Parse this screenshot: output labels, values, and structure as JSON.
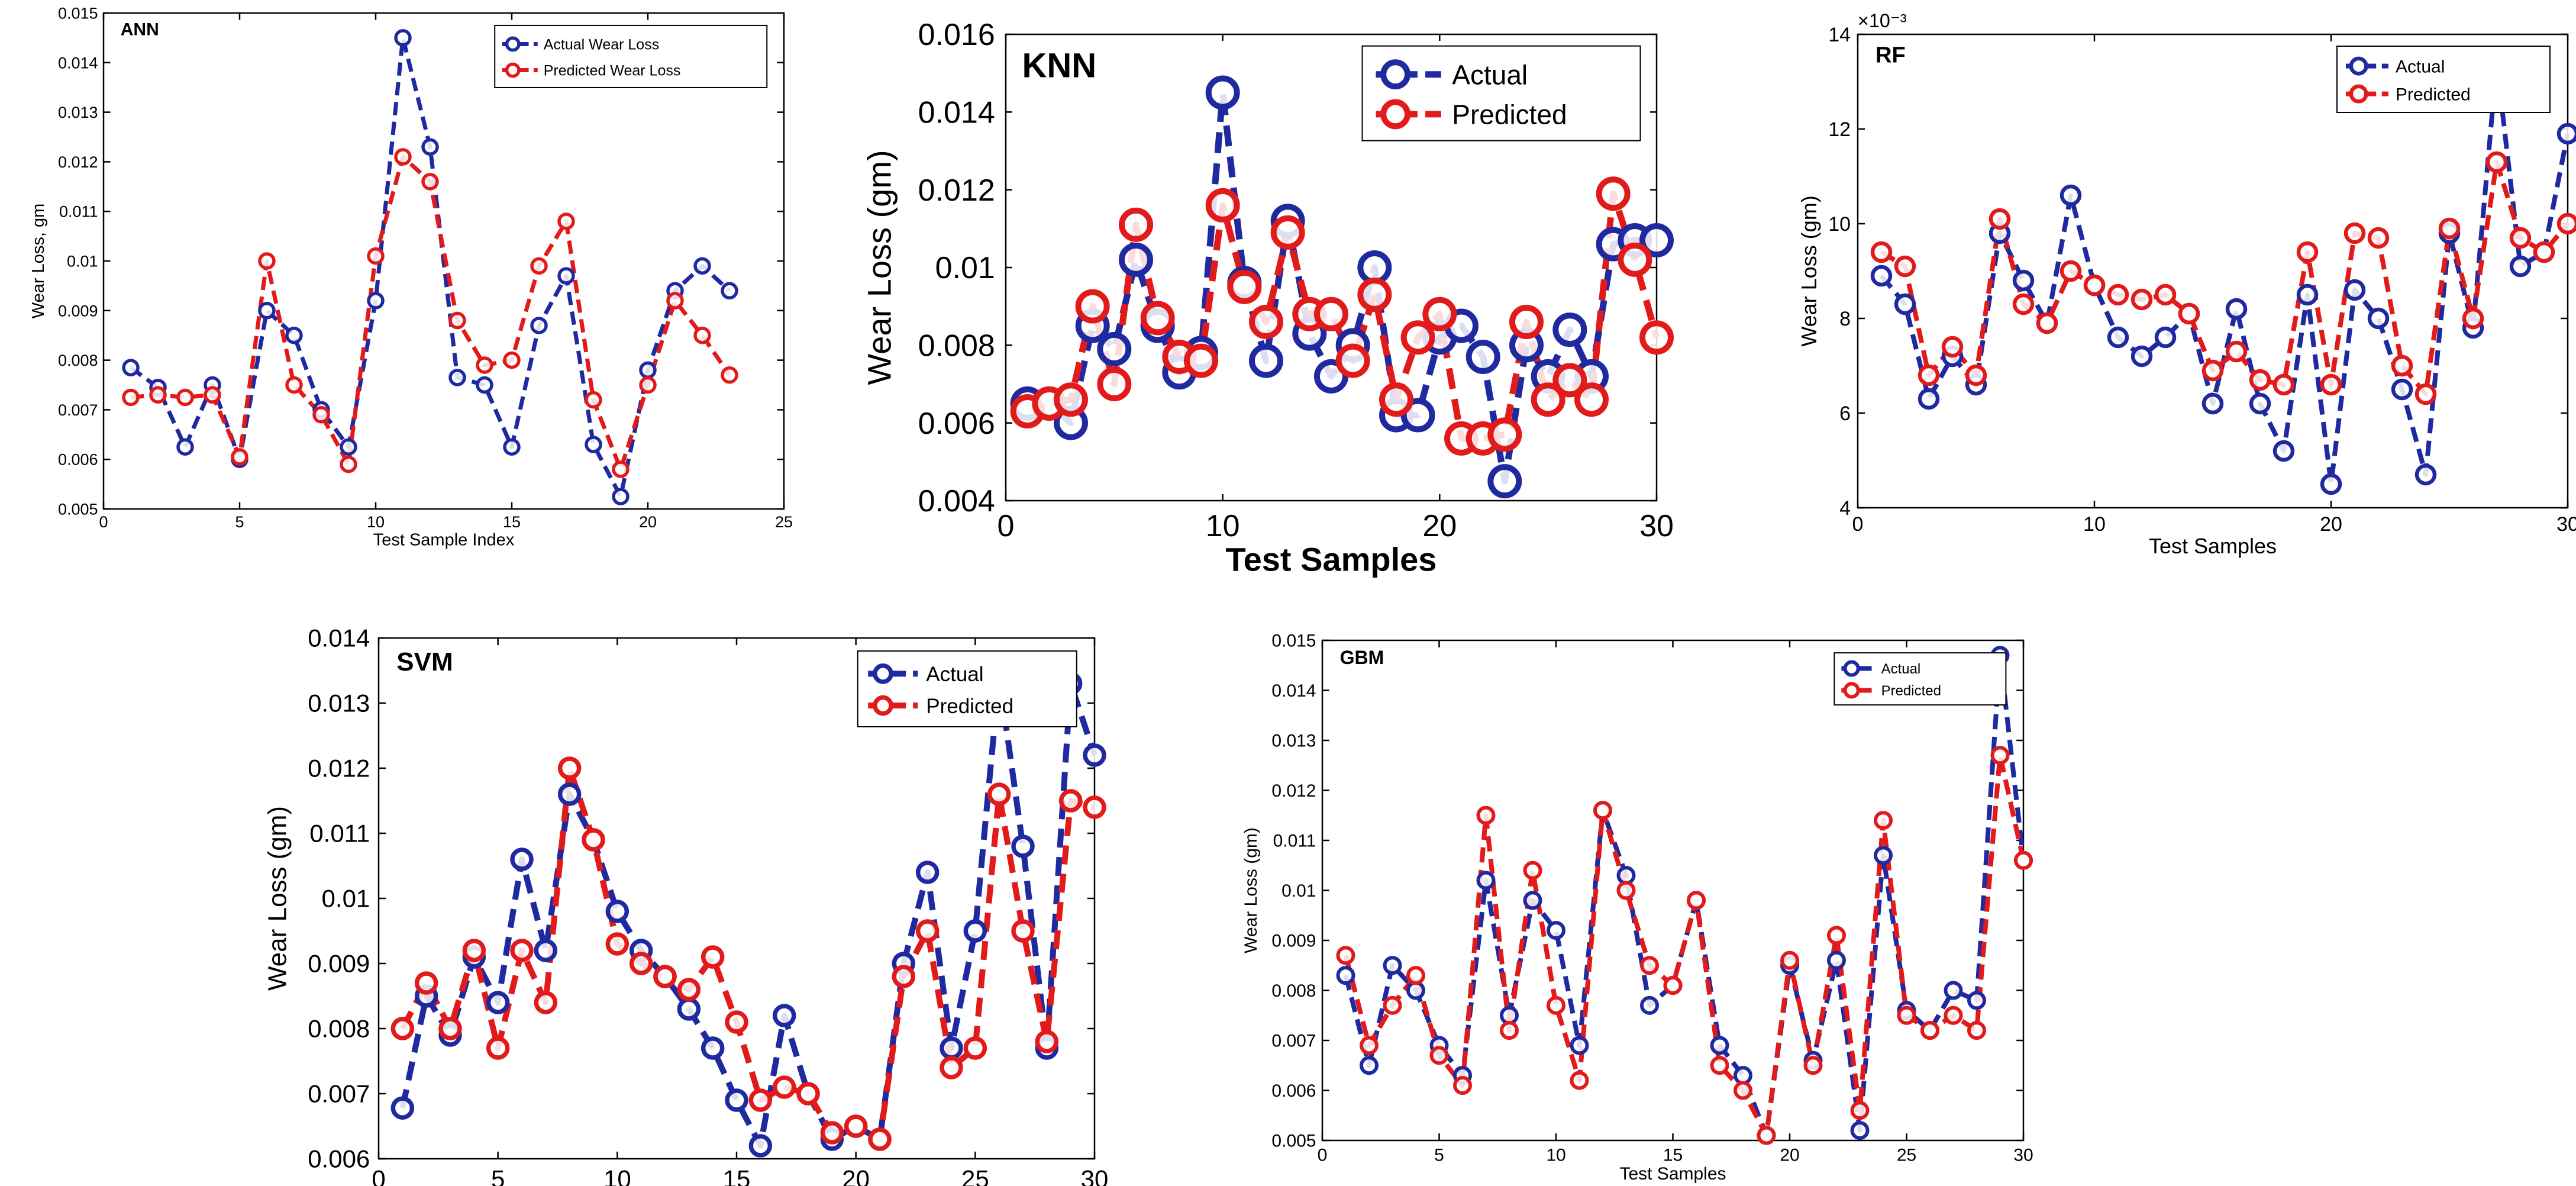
{
  "colors": {
    "actual": "#1f2aa0",
    "predicted": "#e21a1a"
  },
  "chart_data": [
    {
      "id": "ann",
      "type": "line",
      "title": "ANN",
      "xlabel": "Test Sample Index",
      "ylabel": "Wear Loss, gm",
      "xlim": [
        0,
        25
      ],
      "ylim": [
        0.005,
        0.015
      ],
      "xticks": [
        0,
        5,
        10,
        15,
        20,
        25
      ],
      "xtick_labels": [
        "0",
        "5",
        "10",
        "15",
        "20",
        "25"
      ],
      "yticks": [
        0.005,
        0.006,
        0.007,
        0.008,
        0.009,
        0.01,
        0.011,
        0.012,
        0.013,
        0.014,
        0.015
      ],
      "ytick_labels": [
        "0.005",
        "0.006",
        "0.007",
        "0.008",
        "0.009",
        "0.01",
        "0.011",
        "0.012",
        "0.013",
        "0.014",
        "0.015"
      ],
      "exponent_label": "",
      "legend_position": "top-right",
      "x": [
        1,
        2,
        3,
        4,
        5,
        6,
        7,
        8,
        9,
        10,
        11,
        12,
        13,
        14,
        15,
        16,
        17,
        18,
        19,
        20,
        21,
        22,
        23
      ],
      "series": [
        {
          "name": "Actual Wear Loss",
          "values": [
            0.00785,
            0.00745,
            0.00625,
            0.0075,
            0.006,
            0.009,
            0.0085,
            0.007,
            0.00625,
            0.0092,
            0.0145,
            0.0123,
            0.00765,
            0.0075,
            0.00625,
            0.0087,
            0.0097,
            0.0063,
            0.00525,
            0.0078,
            0.0094,
            0.0099,
            0.0094
          ]
        },
        {
          "name": "Predicted Wear Loss",
          "values": [
            0.00725,
            0.0073,
            0.00725,
            0.0073,
            0.00605,
            0.01,
            0.0075,
            0.0069,
            0.0059,
            0.0101,
            0.0121,
            0.0116,
            0.0088,
            0.0079,
            0.008,
            0.0099,
            0.0108,
            0.0072,
            0.0058,
            0.0075,
            0.0092,
            0.0085,
            0.0077
          ]
        }
      ]
    },
    {
      "id": "knn",
      "type": "line",
      "title": "KNN",
      "xlabel": "Test Samples",
      "ylabel": "Wear Loss (gm)",
      "xlim": [
        0,
        30
      ],
      "ylim": [
        0.004,
        0.016
      ],
      "xticks": [
        0,
        10,
        20,
        30
      ],
      "xtick_labels": [
        "0",
        "10",
        "20",
        "30"
      ],
      "yticks": [
        0.004,
        0.006,
        0.008,
        0.01,
        0.012,
        0.014,
        0.016
      ],
      "ytick_labels": [
        "0.004",
        "0.006",
        "0.008",
        "0.01",
        "0.012",
        "0.014",
        "0.016"
      ],
      "exponent_label": "",
      "legend_position": "top-right",
      "x": [
        1,
        2,
        3,
        4,
        5,
        6,
        7,
        8,
        9,
        10,
        11,
        12,
        13,
        14,
        15,
        16,
        17,
        18,
        19,
        20,
        21,
        22,
        23,
        24,
        25,
        26,
        27,
        28,
        29,
        30
      ],
      "series": [
        {
          "name": "Actual",
          "values": [
            0.0065,
            0.0065,
            0.006,
            0.0085,
            0.0079,
            0.0102,
            0.0085,
            0.0073,
            0.0078,
            0.0145,
            0.0096,
            0.0076,
            0.0112,
            0.0083,
            0.0072,
            0.008,
            0.01,
            0.0062,
            0.0062,
            0.0082,
            0.0085,
            0.0077,
            0.0045,
            0.008,
            0.0072,
            0.0084,
            0.0072,
            0.0106,
            0.0107,
            0.0107
          ]
        },
        {
          "name": "Predicted",
          "values": [
            0.0063,
            0.0065,
            0.0066,
            0.009,
            0.007,
            0.0111,
            0.0087,
            0.0077,
            0.0076,
            0.0116,
            0.0095,
            0.0086,
            0.0109,
            0.0088,
            0.0088,
            0.0076,
            0.0093,
            0.0066,
            0.0082,
            0.0088,
            0.0056,
            0.0056,
            0.0057,
            0.0086,
            0.0066,
            0.0071,
            0.0066,
            0.0119,
            0.0102,
            0.0082
          ]
        }
      ]
    },
    {
      "id": "rf",
      "type": "line",
      "title": "RF",
      "xlabel": "Test Samples",
      "ylabel": "Wear Loss (gm)",
      "xlim": [
        0,
        30
      ],
      "ylim": [
        4,
        14
      ],
      "xticks": [
        0,
        10,
        20,
        30
      ],
      "xtick_labels": [
        "0",
        "10",
        "20",
        "30"
      ],
      "yticks": [
        4,
        6,
        8,
        10,
        12,
        14
      ],
      "ytick_labels": [
        "4",
        "6",
        "8",
        "10",
        "12",
        "14"
      ],
      "exponent_label": "×10⁻³",
      "legend_position": "top-right",
      "x": [
        1,
        2,
        3,
        4,
        5,
        6,
        7,
        8,
        9,
        10,
        11,
        12,
        13,
        14,
        15,
        16,
        17,
        18,
        19,
        20,
        21,
        22,
        23,
        24,
        25,
        26,
        27,
        28,
        29,
        30
      ],
      "series": [
        {
          "name": "Actual",
          "values": [
            8.9,
            8.3,
            6.3,
            7.2,
            6.6,
            9.8,
            8.8,
            7.9,
            10.6,
            8.7,
            7.6,
            7.2,
            7.6,
            8.1,
            6.2,
            8.2,
            6.2,
            5.2,
            8.5,
            4.5,
            8.6,
            8.0,
            6.5,
            4.7,
            9.8,
            7.8,
            13.4,
            9.1,
            9.4,
            11.9
          ]
        },
        {
          "name": "Predicted",
          "values": [
            9.4,
            9.1,
            6.8,
            7.4,
            6.8,
            10.1,
            8.3,
            7.9,
            9.0,
            8.7,
            8.5,
            8.4,
            8.5,
            8.1,
            6.9,
            7.3,
            6.7,
            6.6,
            9.4,
            6.6,
            9.8,
            9.7,
            7.0,
            6.4,
            9.9,
            8.0,
            11.3,
            9.7,
            9.4,
            10.0
          ]
        }
      ]
    },
    {
      "id": "svm",
      "type": "line",
      "title": "SVM",
      "xlabel": "Test Samples",
      "ylabel": "Wear Loss (gm)",
      "xlim": [
        0,
        30
      ],
      "ylim": [
        0.006,
        0.014
      ],
      "xticks": [
        0,
        5,
        10,
        15,
        20,
        25,
        30
      ],
      "xtick_labels": [
        "0",
        "5",
        "10",
        "15",
        "20",
        "25",
        "30"
      ],
      "yticks": [
        0.006,
        0.007,
        0.008,
        0.009,
        0.01,
        0.011,
        0.012,
        0.013,
        0.014
      ],
      "ytick_labels": [
        "0.006",
        "0.007",
        "0.008",
        "0.009",
        "0.01",
        "0.011",
        "0.012",
        "0.013",
        "0.014"
      ],
      "exponent_label": "",
      "legend_position": "top-right",
      "x": [
        1,
        2,
        3,
        4,
        5,
        6,
        7,
        8,
        9,
        10,
        11,
        12,
        13,
        14,
        15,
        16,
        17,
        18,
        19,
        20,
        21,
        22,
        23,
        24,
        25,
        26,
        27,
        28,
        29,
        30
      ],
      "series": [
        {
          "name": "Actual",
          "values": [
            0.00678,
            0.0085,
            0.0079,
            0.0091,
            0.0084,
            0.0106,
            0.0092,
            0.0116,
            0.0109,
            0.0098,
            0.0092,
            0.0088,
            0.0083,
            0.0077,
            0.0069,
            0.0062,
            0.0082,
            0.007,
            0.0063,
            0.0065,
            0.0063,
            0.009,
            0.0104,
            0.0077,
            0.0095,
            0.0134,
            0.0108,
            0.0077,
            0.0133,
            0.0122
          ]
        },
        {
          "name": "Predicted",
          "values": [
            0.008,
            0.0087,
            0.008,
            0.0092,
            0.0077,
            0.0092,
            0.0084,
            0.012,
            0.0109,
            0.0093,
            0.009,
            0.0088,
            0.0086,
            0.0091,
            0.0081,
            0.0069,
            0.0071,
            0.007,
            0.0064,
            0.0065,
            0.0063,
            0.0088,
            0.0095,
            0.0074,
            0.0077,
            0.0116,
            0.0095,
            0.0078,
            0.0115,
            0.0114
          ]
        }
      ]
    },
    {
      "id": "gbm",
      "type": "line",
      "title": "GBM",
      "xlabel": "Test Samples",
      "ylabel": "Wear Loss (gm)",
      "xlim": [
        0,
        30
      ],
      "ylim": [
        0.005,
        0.015
      ],
      "xticks": [
        0,
        5,
        10,
        15,
        20,
        25,
        30
      ],
      "xtick_labels": [
        "0",
        "5",
        "10",
        "15",
        "20",
        "25",
        "30"
      ],
      "yticks": [
        0.005,
        0.006,
        0.007,
        0.008,
        0.009,
        0.01,
        0.011,
        0.012,
        0.013,
        0.014,
        0.015
      ],
      "ytick_labels": [
        "0.005",
        "0.006",
        "0.007",
        "0.008",
        "0.009",
        "0.01",
        "0.011",
        "0.012",
        "0.013",
        "0.014",
        "0.015"
      ],
      "exponent_label": "",
      "legend_position": "top-right",
      "x": [
        1,
        2,
        3,
        4,
        5,
        6,
        7,
        8,
        9,
        10,
        11,
        12,
        13,
        14,
        15,
        16,
        17,
        18,
        19,
        20,
        21,
        22,
        23,
        24,
        25,
        26,
        27,
        28,
        29,
        30
      ],
      "series": [
        {
          "name": "Actual",
          "values": [
            0.0083,
            0.0065,
            0.0085,
            0.008,
            0.0069,
            0.0063,
            0.0102,
            0.0075,
            0.0098,
            0.0092,
            0.0069,
            0.0116,
            0.0103,
            0.0077,
            0.0081,
            0.0098,
            0.0069,
            0.0063,
            0.0051,
            0.0085,
            0.0066,
            0.0086,
            0.0052,
            0.0107,
            0.0076,
            0.0072,
            0.008,
            0.0078,
            0.0147,
            0.0106
          ]
        },
        {
          "name": "Predicted",
          "values": [
            0.0087,
            0.0069,
            0.0077,
            0.0083,
            0.0067,
            0.0061,
            0.0115,
            0.0072,
            0.0104,
            0.0077,
            0.0062,
            0.0116,
            0.01,
            0.0085,
            0.0081,
            0.0098,
            0.0065,
            0.006,
            0.0051,
            0.0086,
            0.0065,
            0.0091,
            0.0056,
            0.0114,
            0.0075,
            0.0072,
            0.0075,
            0.0072,
            0.0127,
            0.0106
          ]
        }
      ]
    }
  ]
}
